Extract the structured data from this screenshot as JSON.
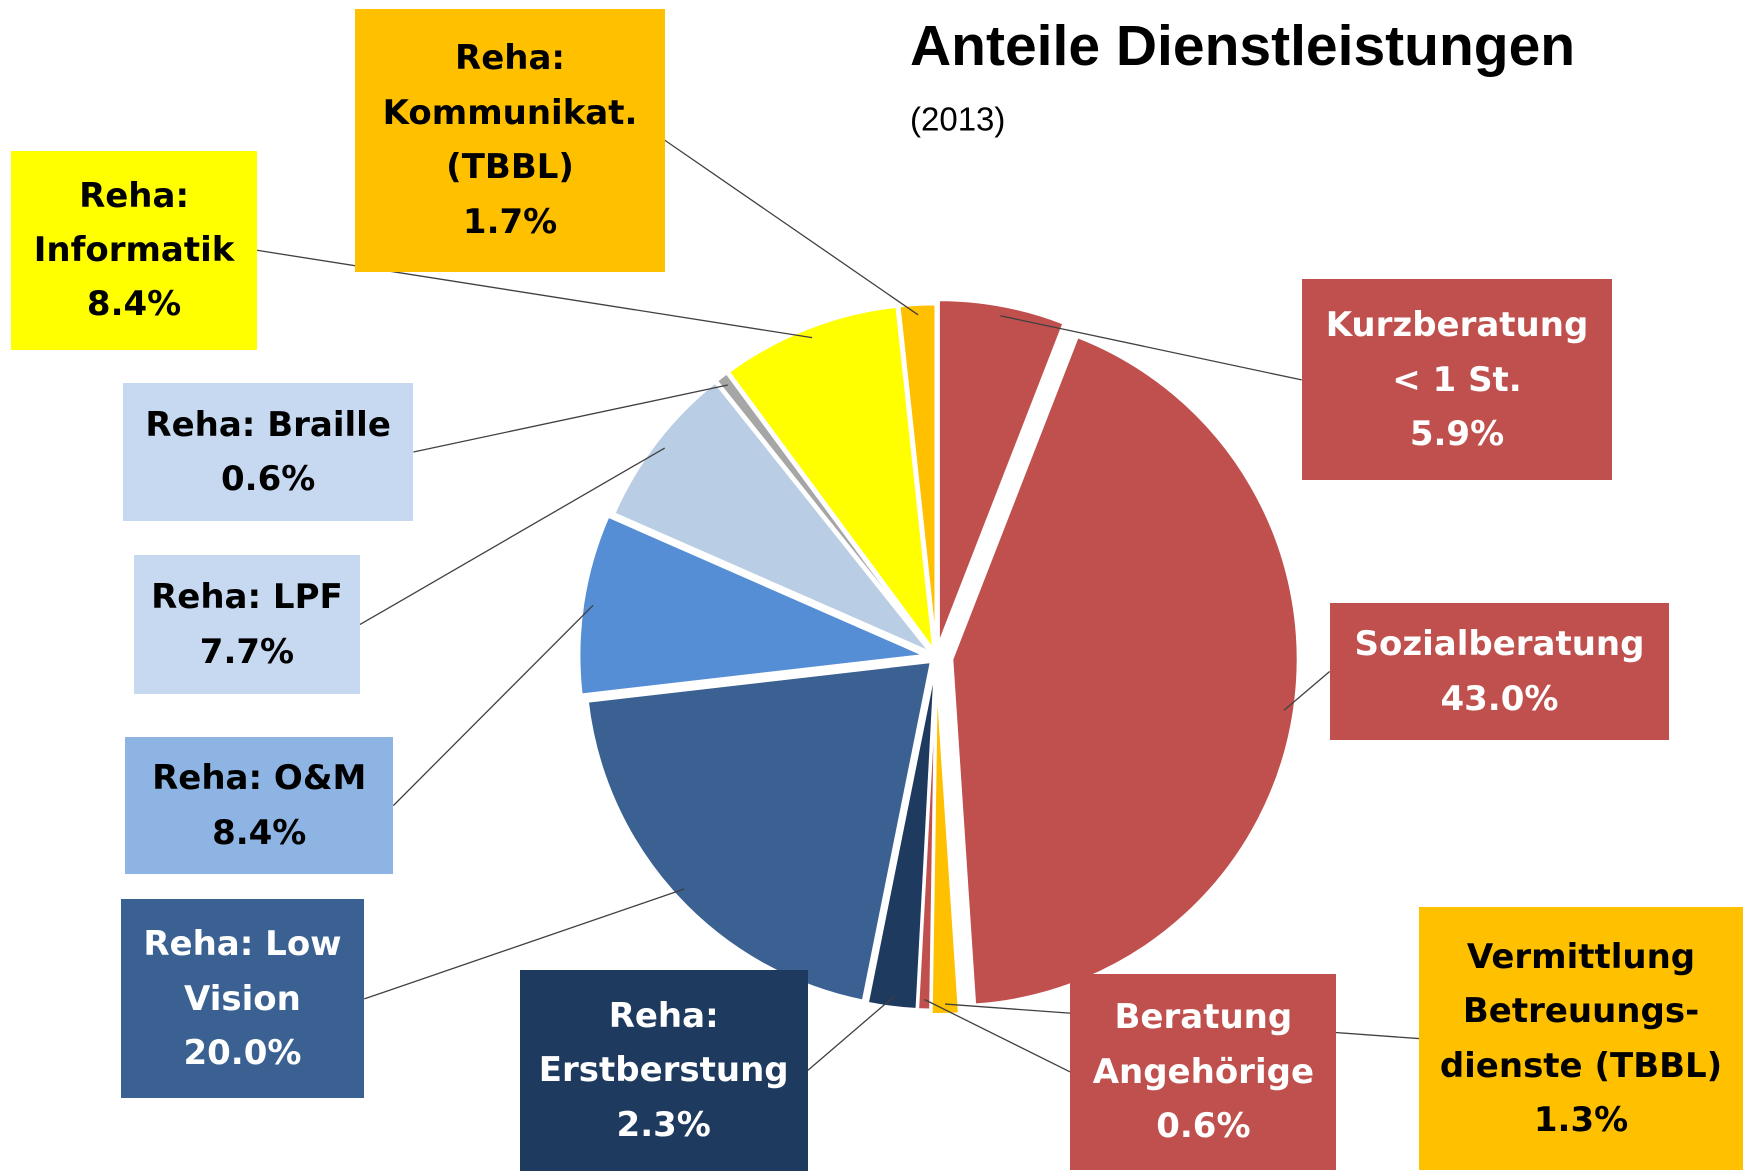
{
  "chart_data": {
    "type": "pie",
    "title": "Anteile Dienstleistungen",
    "subtitle": "(2013)",
    "categories": [
      "Kurzberatung\n< 1 St.",
      "Sozialberatung",
      "Vermittlung\nBetreuungs-\ndienste (TBBL)",
      "Beratung\nAngehörige",
      "Reha:\nErstberstung",
      "Reha: Low\nVision",
      "Reha: O&M",
      "Reha: LPF",
      "Reha: Braille",
      "Reha:\nInformatik",
      "Reha:\nKommunikat.\n(TBBL)"
    ],
    "values": [
      5.9,
      43.0,
      1.3,
      0.6,
      2.3,
      20.0,
      8.4,
      7.7,
      0.6,
      8.4,
      1.7
    ],
    "value_labels": [
      "5.9%",
      "43.0%",
      "1.3%",
      "0.6%",
      "2.3%",
      "20.0%",
      "8.4%",
      "7.7%",
      "0.6%",
      "8.4%",
      "1.7%"
    ],
    "colors": [
      "#c0504d",
      "#c0504d",
      "#ffc000",
      "#c0504d",
      "#1f3a5f",
      "#3a6191",
      "#558ed5",
      "#b9cde5",
      "#a6a6a6",
      "#ffff00",
      "#ffc000"
    ]
  }
}
